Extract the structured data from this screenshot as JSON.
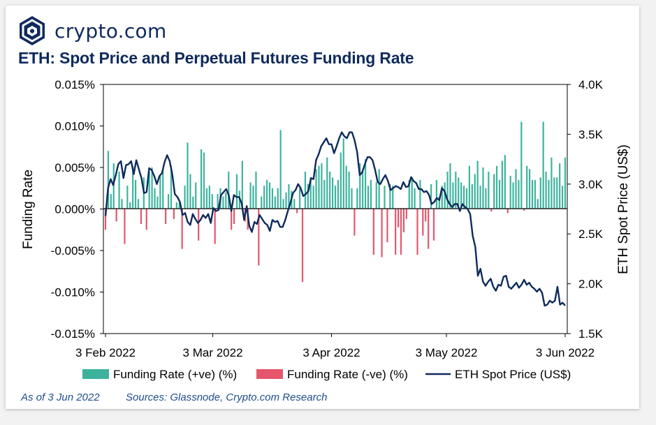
{
  "brand": {
    "name": "crypto.com",
    "logo_icon": "crypto-com-shield-logo"
  },
  "header": {
    "title": "ETH: Spot Price and Perpetual Futures Funding Rate"
  },
  "footer": {
    "as_of": "As of 3 Jun 2022",
    "sources": "Sources: Glassnode, Crypto.com Research"
  },
  "colors": {
    "positive": "#3db39e",
    "negative": "#e5566d",
    "price": "#0f2a5c",
    "brand": "#0f2a5c"
  },
  "chart_data": {
    "type": "bar",
    "ylabel": "Funding Rate",
    "y2label": "ETH Spot Price (US$)",
    "ylim": [
      -0.015,
      0.015
    ],
    "y_ticks": [
      "0.015%",
      "0.010%",
      "0.005%",
      "0.000%",
      "-0.005%",
      "-0.010%",
      "-0.015%"
    ],
    "y2lim": [
      1500,
      4000
    ],
    "y2_ticks": [
      "4.0K",
      "3.5K",
      "3.0K",
      "2.5K",
      "2.0K",
      "1.5K"
    ],
    "x_ticks": [
      "3 Feb 2022",
      "3 Mar 2022",
      "3 Apr 2022",
      "3 May 2022",
      "3 Jun 2022"
    ],
    "x_start": "2022-02-03",
    "x_end": "2022-06-03",
    "legend": [
      "Funding Rate (+ve) (%)",
      "Funding Rate (-ve) (%)",
      "ETH Spot Price (US$)"
    ],
    "legend_position": "bottom",
    "funding_rate_pct": [
      -0.0025,
      0.007,
      0.0018,
      0.0055,
      -0.0015,
      0.0045,
      0.0012,
      -0.0042,
      0.0028,
      0.0008,
      0.0052,
      0.0035,
      0.0012,
      -0.0018,
      0.0038,
      -0.0025,
      0.0045,
      0.005,
      0.0025,
      0.0015,
      0.004,
      0.0048,
      -0.0018,
      0.0018,
      0.0052,
      -0.0012,
      0.0008,
      0.0008,
      -0.0048,
      0.0028,
      0.008,
      0.0042,
      0.0015,
      0.0032,
      -0.0038,
      0.0072,
      0.0068,
      0.0025,
      0.0028,
      0.0018,
      -0.0042,
      0.0018,
      0.0025,
      0.0015,
      0.002,
      0.0045,
      -0.0025,
      -0.0018,
      0.0042,
      0.0022,
      0.0058,
      -0.0015,
      -0.0025,
      0.0032,
      0.0028,
      0.0045,
      -0.0068,
      0.0015,
      0.0028,
      0.0035,
      0.0032,
      0.0025,
      0.0015,
      0.0025,
      0.0095,
      0.0012,
      0.002,
      0.003,
      0.0022,
      0.0012,
      -0.0005,
      0.0025,
      -0.0088,
      0.0045,
      0.003,
      0.0038,
      0.0028,
      0.0048,
      0.0052,
      0.0055,
      0.0035,
      0.0062,
      0.0045,
      0.0038,
      0.0028,
      0.0035,
      0.0068,
      0.0085,
      0.0052,
      0.0045,
      0.0025,
      -0.0032,
      0.0025,
      0.0055,
      0.0045,
      0.006,
      0.0028,
      0.0035,
      -0.0055,
      0.0032,
      0.0048,
      -0.0058,
      0.0028,
      -0.004,
      0.003,
      0.0028,
      -0.0055,
      -0.0022,
      -0.0055,
      -0.0028,
      -0.0012,
      0.0035,
      0.0038,
      0.0025,
      -0.0055,
      0.0035,
      -0.0032,
      -0.0015,
      -0.0048,
      0.003,
      -0.0038,
      0.0035,
      0.0015,
      0.0028,
      0.0032,
      0.0045,
      0.0055,
      0.0032,
      0.0045,
      0.0038,
      0.0032,
      0.0028,
      0.0025,
      0.0052,
      0.003,
      0.0042,
      0.0058,
      0.0028,
      0.005,
      0.0025,
      0.0045,
      -0.0003,
      0.0042,
      0.0052,
      0.0035,
      0.0058,
      0.0065,
      -0.0005,
      0.004,
      0.0032,
      0.0048,
      0.0035,
      0.0105,
      -0.0002,
      0.0052,
      0.0048,
      0.0035,
      0.0035,
      0.0012,
      0.0038,
      0.0105,
      0.0045,
      0.0035,
      0.0062,
      0.0038,
      0.0038,
      0.0055,
      0.0028,
      0.0062
    ],
    "eth_price": [
      2680,
      2960,
      3050,
      2990,
      3090,
      3200,
      3230,
      3060,
      3190,
      3200,
      3230,
      3100,
      3240,
      3150,
      3060,
      2910,
      2920,
      3160,
      3140,
      3080,
      3000,
      3080,
      3110,
      3220,
      3290,
      3230,
      3100,
      2900,
      2870,
      2820,
      2690,
      2710,
      2620,
      2590,
      2700,
      2650,
      2610,
      2640,
      2690,
      2660,
      2700,
      2610,
      2760,
      2730,
      2740,
      2890,
      2920,
      2950,
      2890,
      2730,
      2890,
      2870,
      2870,
      2810,
      2640,
      2780,
      2580,
      2520,
      2620,
      2600,
      2690,
      2650,
      2610,
      2590,
      2530,
      2640,
      2620,
      2630,
      2570,
      2570,
      2640,
      2730,
      2810,
      2910,
      2940,
      3000,
      2960,
      2880,
      2900,
      2930,
      3060,
      3050,
      3240,
      3300,
      3380,
      3420,
      3460,
      3400,
      3400,
      3310,
      3380,
      3460,
      3520,
      3480,
      3460,
      3520,
      3520,
      3440,
      3320,
      3090,
      3120,
      3200,
      3270,
      3270,
      3240,
      3140,
      3020,
      3000,
      3050,
      3090,
      3030,
      2940,
      2960,
      2980,
      2970,
      2950,
      3020,
      2970,
      2980,
      3070,
      3030,
      3010,
      2950,
      2950,
      2920,
      2930,
      2890,
      2800,
      2820,
      2860,
      2840,
      2960,
      2930,
      2850,
      2800,
      2770,
      2800,
      2800,
      2730,
      2800,
      2770,
      2750,
      2700,
      2480,
      2370,
      2080,
      2150,
      2020,
      1980,
      2020,
      2050,
      1970,
      1930,
      1990,
      1980,
      2070,
      2080,
      1970,
      1950,
      1980,
      2010,
      1960,
      1990,
      2040,
      1990,
      2010,
      1970,
      1950,
      1920,
      1950,
      1910,
      1780,
      1790,
      1830,
      1810,
      1830,
      1970,
      1790,
      1810,
      1780
    ]
  }
}
